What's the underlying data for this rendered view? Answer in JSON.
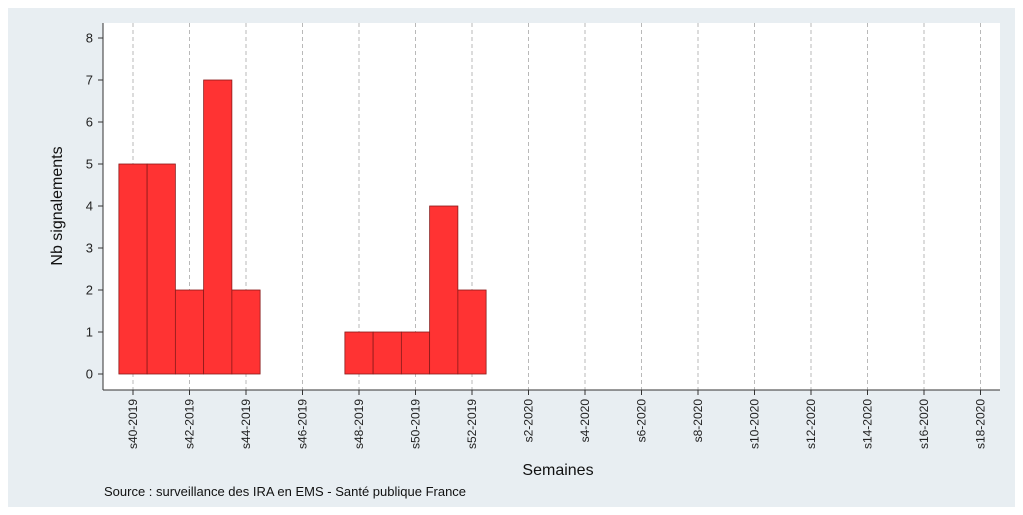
{
  "chart_data": {
    "type": "bar",
    "ylabel": "Nb signalements",
    "xlabel": "Semaines",
    "ylim": [
      0,
      8
    ],
    "yticks": [
      0,
      1,
      2,
      3,
      4,
      5,
      6,
      7,
      8
    ],
    "grid": "vertical dashed",
    "bar_color": "#ff3333",
    "categories": [
      "s40-2019",
      "s41-2019",
      "s42-2019",
      "s43-2019",
      "s44-2019",
      "s45-2019",
      "s46-2019",
      "s47-2019",
      "s48-2019",
      "s49-2019",
      "s50-2019",
      "s51-2019",
      "s52-2019",
      "s1-2020",
      "s2-2020",
      "s3-2020",
      "s4-2020",
      "s5-2020",
      "s6-2020",
      "s7-2020",
      "s8-2020",
      "s9-2020",
      "s10-2020",
      "s11-2020",
      "s12-2020",
      "s13-2020",
      "s14-2020",
      "s15-2020",
      "s16-2020",
      "s17-2020",
      "s18-2020"
    ],
    "tick_labels": [
      "s40-2019",
      "s42-2019",
      "s44-2019",
      "s46-2019",
      "s48-2019",
      "s50-2019",
      "s52-2019",
      "s2-2020",
      "s4-2020",
      "s6-2020",
      "s8-2020",
      "s10-2020",
      "s12-2020",
      "s14-2020",
      "s16-2020",
      "s18-2020"
    ],
    "values": [
      5,
      5,
      2,
      7,
      2,
      0,
      0,
      0,
      1,
      1,
      1,
      4,
      2,
      0,
      0,
      0,
      0,
      0,
      0,
      0,
      0,
      0,
      0,
      0,
      0,
      0,
      0,
      0,
      0,
      0,
      0
    ]
  },
  "source_note": "Source : surveillance des IRA en EMS - Santé publique France"
}
